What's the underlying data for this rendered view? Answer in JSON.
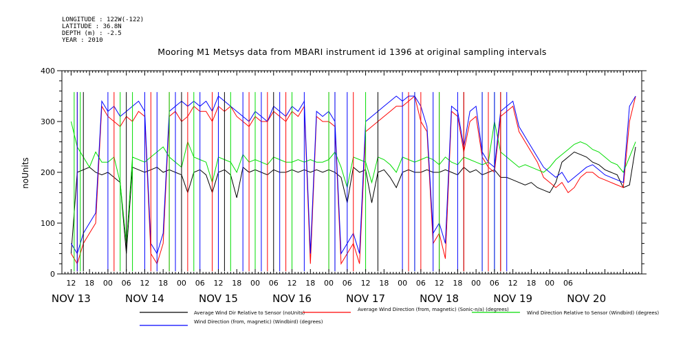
{
  "header": {
    "longitude": "LONGITUDE : 122W(-122)",
    "latitude": "LATITUDE : 36.8N",
    "depth": "DEPTH (m) : -2.5",
    "year": "YEAR : 2010"
  },
  "chart_data": {
    "type": "line",
    "title": "Mooring M1 Metsys data from MBARI instrument id 1396 at original sampling intervals",
    "ylabel": "noUnits",
    "xlabel": "",
    "ylim": [
      0,
      400
    ],
    "xlim_hours": [
      -3,
      186
    ],
    "grid": false,
    "legend_position": "bottom",
    "y_ticks": [
      "0",
      "100",
      "200",
      "300",
      "400"
    ],
    "x_hour_ticks": [
      "12",
      "18",
      "00",
      "06",
      "12",
      "18",
      "00",
      "06",
      "12",
      "18",
      "00",
      "06",
      "12",
      "18",
      "00",
      "06",
      "12",
      "18",
      "00",
      "06",
      "12",
      "18",
      "00",
      "06",
      "12",
      "18",
      "00",
      "06"
    ],
    "x_date_labels": [
      "NOV 13",
      "NOV 14",
      "NOV 15",
      "NOV 16",
      "NOV 17",
      "NOV 18",
      "NOV 19",
      "NOV 20"
    ],
    "series": [
      {
        "name": "Average Wind Dir Relative to Sensor (noUnits)",
        "color": "#000000",
        "x": [
          0,
          2,
          4,
          6,
          8,
          10,
          12,
          14,
          16,
          18,
          20,
          22,
          24,
          26,
          28,
          30,
          32,
          34,
          36,
          38,
          40,
          42,
          44,
          46,
          48,
          50,
          52,
          54,
          56,
          58,
          60,
          62,
          64,
          66,
          68,
          70,
          72,
          74,
          76,
          78,
          80,
          82,
          84,
          86,
          88,
          90,
          92,
          94,
          96,
          98,
          100,
          102,
          104,
          106,
          108,
          110,
          112,
          114,
          116,
          118,
          120,
          122,
          124,
          126,
          128,
          130,
          132,
          134,
          136,
          138,
          140,
          142,
          144,
          146,
          148,
          150,
          152,
          154,
          156,
          158,
          160,
          162,
          164,
          166,
          168,
          170,
          172,
          174,
          176,
          178,
          180,
          182,
          184
        ],
        "y": [
          40,
          200,
          205,
          210,
          200,
          195,
          200,
          190,
          180,
          40,
          210,
          205,
          200,
          205,
          210,
          200,
          205,
          200,
          195,
          160,
          200,
          205,
          195,
          160,
          200,
          205,
          195,
          150,
          210,
          200,
          205,
          200,
          195,
          205,
          200,
          200,
          205,
          200,
          205,
          200,
          205,
          200,
          205,
          200,
          190,
          140,
          210,
          200,
          205,
          140,
          200,
          205,
          190,
          170,
          200,
          205,
          200,
          200,
          205,
          200,
          200,
          205,
          200,
          195,
          210,
          200,
          205,
          195,
          200,
          205,
          190,
          190,
          185,
          180,
          175,
          180,
          170,
          165,
          160,
          180,
          220,
          230,
          240,
          235,
          230,
          220,
          215,
          205,
          200,
          195,
          170,
          175,
          250
        ]
      },
      {
        "name": "Average Wind Direction (from, magnetic) (Sonic-n/a) (degrees)",
        "color": "#ff0000",
        "x": [
          0,
          2,
          4,
          6,
          8,
          10,
          12,
          14,
          16,
          18,
          20,
          22,
          24,
          26,
          28,
          30,
          32,
          34,
          36,
          38,
          40,
          42,
          44,
          46,
          48,
          50,
          52,
          54,
          56,
          58,
          60,
          62,
          64,
          66,
          68,
          70,
          72,
          74,
          76,
          78,
          80,
          82,
          84,
          86,
          88,
          90,
          92,
          94,
          96,
          98,
          100,
          102,
          104,
          106,
          108,
          110,
          112,
          114,
          116,
          118,
          120,
          122,
          124,
          126,
          128,
          130,
          132,
          134,
          136,
          138,
          140,
          142,
          144,
          146,
          148,
          150,
          152,
          154,
          156,
          158,
          160,
          162,
          164,
          166,
          168,
          170,
          172,
          174,
          176,
          178,
          180,
          182,
          184
        ],
        "y": [
          40,
          20,
          60,
          80,
          100,
          330,
          310,
          300,
          290,
          310,
          300,
          320,
          310,
          40,
          20,
          60,
          310,
          320,
          300,
          310,
          330,
          320,
          320,
          300,
          330,
          320,
          330,
          310,
          300,
          290,
          310,
          300,
          300,
          320,
          310,
          300,
          320,
          310,
          330,
          20,
          310,
          300,
          300,
          290,
          20,
          40,
          60,
          20,
          280,
          290,
          300,
          310,
          320,
          330,
          330,
          340,
          350,
          300,
          280,
          60,
          80,
          30,
          320,
          310,
          240,
          300,
          310,
          230,
          210,
          200,
          310,
          320,
          330,
          280,
          260,
          240,
          220,
          190,
          180,
          170,
          180,
          160,
          170,
          190,
          200,
          200,
          190,
          185,
          180,
          175,
          170,
          300,
          350
        ]
      },
      {
        "name": "Wind Direction Relative to Sensor (Windbird) (degrees)",
        "color": "#00dd00",
        "x": [
          0,
          2,
          4,
          6,
          8,
          10,
          12,
          14,
          16,
          18,
          20,
          22,
          24,
          26,
          28,
          30,
          32,
          34,
          36,
          38,
          40,
          42,
          44,
          46,
          48,
          50,
          52,
          54,
          56,
          58,
          60,
          62,
          64,
          66,
          68,
          70,
          72,
          74,
          76,
          78,
          80,
          82,
          84,
          86,
          88,
          90,
          92,
          94,
          96,
          98,
          100,
          102,
          104,
          106,
          108,
          110,
          112,
          114,
          116,
          118,
          120,
          122,
          124,
          126,
          128,
          130,
          132,
          134,
          136,
          138,
          140,
          142,
          144,
          146,
          148,
          150,
          152,
          154,
          156,
          158,
          160,
          162,
          164,
          166,
          168,
          170,
          172,
          174,
          176,
          178,
          180,
          182,
          184
        ],
        "y": [
          300,
          250,
          230,
          210,
          240,
          220,
          220,
          230,
          180,
          60,
          230,
          225,
          220,
          230,
          240,
          250,
          230,
          220,
          210,
          260,
          230,
          225,
          220,
          180,
          230,
          225,
          220,
          200,
          235,
          220,
          225,
          220,
          215,
          230,
          225,
          220,
          220,
          225,
          220,
          225,
          220,
          220,
          225,
          240,
          210,
          170,
          230,
          225,
          220,
          180,
          230,
          225,
          215,
          200,
          230,
          225,
          220,
          225,
          230,
          225,
          215,
          230,
          220,
          215,
          230,
          225,
          220,
          215,
          220,
          300,
          240,
          230,
          220,
          210,
          215,
          210,
          205,
          200,
          210,
          225,
          235,
          245,
          255,
          260,
          255,
          245,
          240,
          230,
          220,
          215,
          200,
          230,
          260
        ]
      },
      {
        "name": "Wind Direction (from, magnetic) (Windbird) (degrees)",
        "color": "#0000ff",
        "x": [
          0,
          2,
          4,
          6,
          8,
          10,
          12,
          14,
          16,
          18,
          20,
          22,
          24,
          26,
          28,
          30,
          32,
          34,
          36,
          38,
          40,
          42,
          44,
          46,
          48,
          50,
          52,
          54,
          56,
          58,
          60,
          62,
          64,
          66,
          68,
          70,
          72,
          74,
          76,
          78,
          80,
          82,
          84,
          86,
          88,
          90,
          92,
          94,
          96,
          98,
          100,
          102,
          104,
          106,
          108,
          110,
          112,
          114,
          116,
          118,
          120,
          122,
          124,
          126,
          128,
          130,
          132,
          134,
          136,
          138,
          140,
          142,
          144,
          146,
          148,
          150,
          152,
          154,
          156,
          158,
          160,
          162,
          164,
          166,
          168,
          170,
          172,
          174,
          176,
          178,
          180,
          182,
          184
        ],
        "y": [
          60,
          40,
          80,
          100,
          120,
          340,
          320,
          330,
          310,
          320,
          330,
          340,
          320,
          60,
          40,
          80,
          320,
          330,
          340,
          330,
          340,
          330,
          340,
          320,
          350,
          340,
          330,
          320,
          310,
          300,
          320,
          310,
          300,
          330,
          320,
          310,
          330,
          320,
          340,
          40,
          320,
          310,
          320,
          300,
          40,
          60,
          80,
          40,
          300,
          310,
          320,
          330,
          340,
          350,
          340,
          350,
          350,
          330,
          290,
          80,
          100,
          60,
          330,
          320,
          250,
          320,
          330,
          240,
          220,
          210,
          320,
          330,
          340,
          290,
          270,
          250,
          230,
          210,
          200,
          190,
          200,
          180,
          190,
          200,
          210,
          215,
          205,
          195,
          190,
          185,
          180,
          330,
          350
        ]
      }
    ],
    "spike_lines": [
      {
        "series": 0,
        "hours": [
          4,
          18,
          36,
          50,
          66,
          86,
          100,
          128,
          140
        ]
      },
      {
        "series": 1,
        "hours": [
          2,
          14,
          26,
          32,
          38,
          46,
          58,
          64,
          70,
          84,
          92,
          110,
          114,
          120,
          128,
          136,
          140
        ]
      },
      {
        "series": 2,
        "hours": [
          1,
          3,
          16,
          20,
          32,
          40,
          52,
          60,
          72,
          84,
          96,
          112,
          120,
          134,
          138
        ]
      },
      {
        "series": 3,
        "hours": [
          2,
          12,
          24,
          28,
          34,
          42,
          48,
          56,
          62,
          68,
          76,
          86,
          90,
          108,
          112,
          118,
          126,
          134,
          138,
          142
        ]
      }
    ]
  }
}
